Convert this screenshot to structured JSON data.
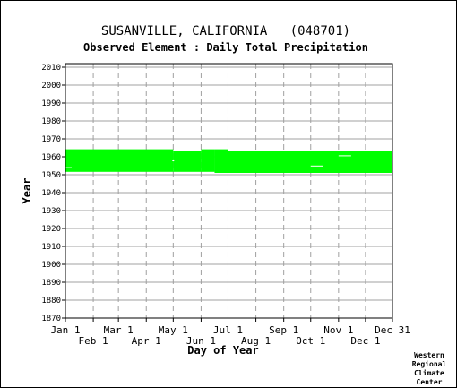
{
  "chart_data": {
    "type": "heatmap",
    "title": "SUSANVILLE, CALIFORNIA   (048701)",
    "subtitle": "Observed Element : Daily Total Precipitation",
    "xlabel": "Day of Year",
    "ylabel": "Year",
    "credit": [
      "Western",
      "Regional",
      "Climate",
      "Center"
    ],
    "xlim": [
      1,
      365
    ],
    "ylim": [
      1870,
      2012
    ],
    "y_ticks": [
      2010,
      2000,
      1990,
      1980,
      1970,
      1960,
      1950,
      1940,
      1930,
      1920,
      1910,
      1900,
      1890,
      1880,
      1870
    ],
    "x_ticks_row1": [
      {
        "label": "Jan 1",
        "day": 1
      },
      {
        "label": "Mar 1",
        "day": 60
      },
      {
        "label": "May 1",
        "day": 121
      },
      {
        "label": "Jul 1",
        "day": 182
      },
      {
        "label": "Sep 1",
        "day": 244
      },
      {
        "label": "Nov 1",
        "day": 305
      },
      {
        "label": "Dec 31",
        "day": 365
      }
    ],
    "x_ticks_row2": [
      {
        "label": "Feb 1",
        "day": 32
      },
      {
        "label": "Apr 1",
        "day": 91
      },
      {
        "label": "Jun 1",
        "day": 152
      },
      {
        "label": "Aug 1",
        "day": 213
      },
      {
        "label": "Oct 1",
        "day": 274
      },
      {
        "label": "Dec 1",
        "day": 335
      }
    ],
    "grid": true,
    "data_color": "#00ff00",
    "coverage": [
      {
        "day_start": 1,
        "day_end": 121,
        "year_start": 1951.6,
        "year_end": 1964.2
      },
      {
        "day_start": 121,
        "day_end": 152,
        "year_start": 1951.6,
        "year_end": 1963.4
      },
      {
        "day_start": 152,
        "day_end": 167,
        "year_start": 1951.6,
        "year_end": 1964.2
      },
      {
        "day_start": 167,
        "day_end": 182,
        "year_start": 1951.0,
        "year_end": 1964.2
      },
      {
        "day_start": 182,
        "day_end": 365,
        "year_start": 1951.0,
        "year_end": 1963.4
      }
    ],
    "gaps": [
      {
        "day_start": 1,
        "day_end": 8,
        "year_start": 1953.7,
        "year_end": 1954.2
      },
      {
        "day_start": 274,
        "day_end": 288,
        "year_start": 1954.6,
        "year_end": 1955.1
      },
      {
        "day_start": 305,
        "day_end": 319,
        "year_start": 1960.3,
        "year_end": 1960.8
      },
      {
        "day_start": 120,
        "day_end": 122,
        "year_start": 1957.5,
        "year_end": 1958.0
      }
    ]
  }
}
